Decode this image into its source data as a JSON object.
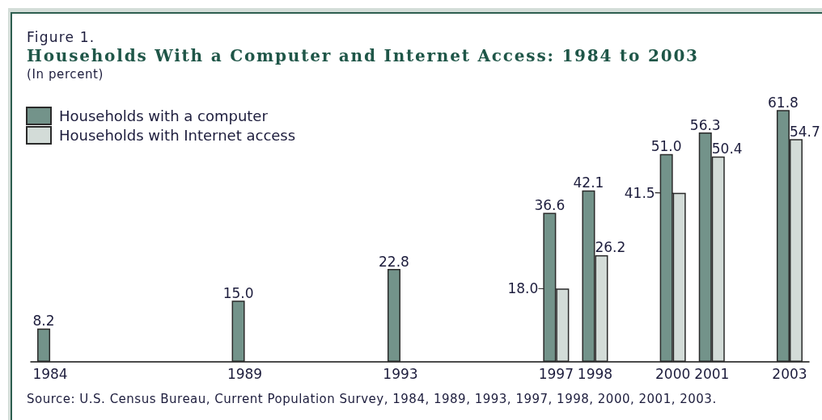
{
  "chart_data": {
    "type": "bar",
    "title": "Households With a Computer and Internet Access: 1984 to 2003",
    "subtitle": "(In percent)",
    "annotations": [
      "Figure 1.",
      "Source: U.S. Census Bureau, Current Population Survey, 1984, 1989, 1993, 1997, 1998, 2000, 2001, 2003."
    ],
    "categories": [
      "1984",
      null,
      null,
      null,
      null,
      "1989",
      null,
      null,
      null,
      "1993",
      null,
      null,
      null,
      "1997",
      "1998",
      null,
      "2000",
      "2001",
      null,
      "2003"
    ],
    "series": [
      {
        "name": "Households with a computer",
        "color": "#73938a",
        "values": [
          8.2,
          null,
          null,
          null,
          null,
          15.0,
          null,
          null,
          null,
          22.8,
          null,
          null,
          null,
          36.6,
          42.1,
          null,
          51.0,
          56.3,
          null,
          61.8
        ],
        "value_labels": [
          "8.2",
          null,
          null,
          null,
          null,
          "15.0",
          null,
          null,
          null,
          "22.8",
          null,
          null,
          null,
          "36.6",
          "42.1",
          null,
          "51.0",
          "56.3",
          null,
          "61.8"
        ]
      },
      {
        "name": "Households with Internet access",
        "color": "#d3dcd8",
        "values": [
          null,
          null,
          null,
          null,
          null,
          null,
          null,
          null,
          null,
          null,
          null,
          null,
          null,
          18.0,
          26.2,
          null,
          41.5,
          50.4,
          null,
          54.7
        ],
        "value_labels": [
          null,
          null,
          null,
          null,
          null,
          null,
          null,
          null,
          null,
          null,
          null,
          null,
          null,
          "18.0",
          "26.2",
          null,
          "41.5",
          "50.4",
          null,
          "54.7"
        ]
      }
    ],
    "legend": "top left",
    "grid": false,
    "tick_labels": "x"
  }
}
